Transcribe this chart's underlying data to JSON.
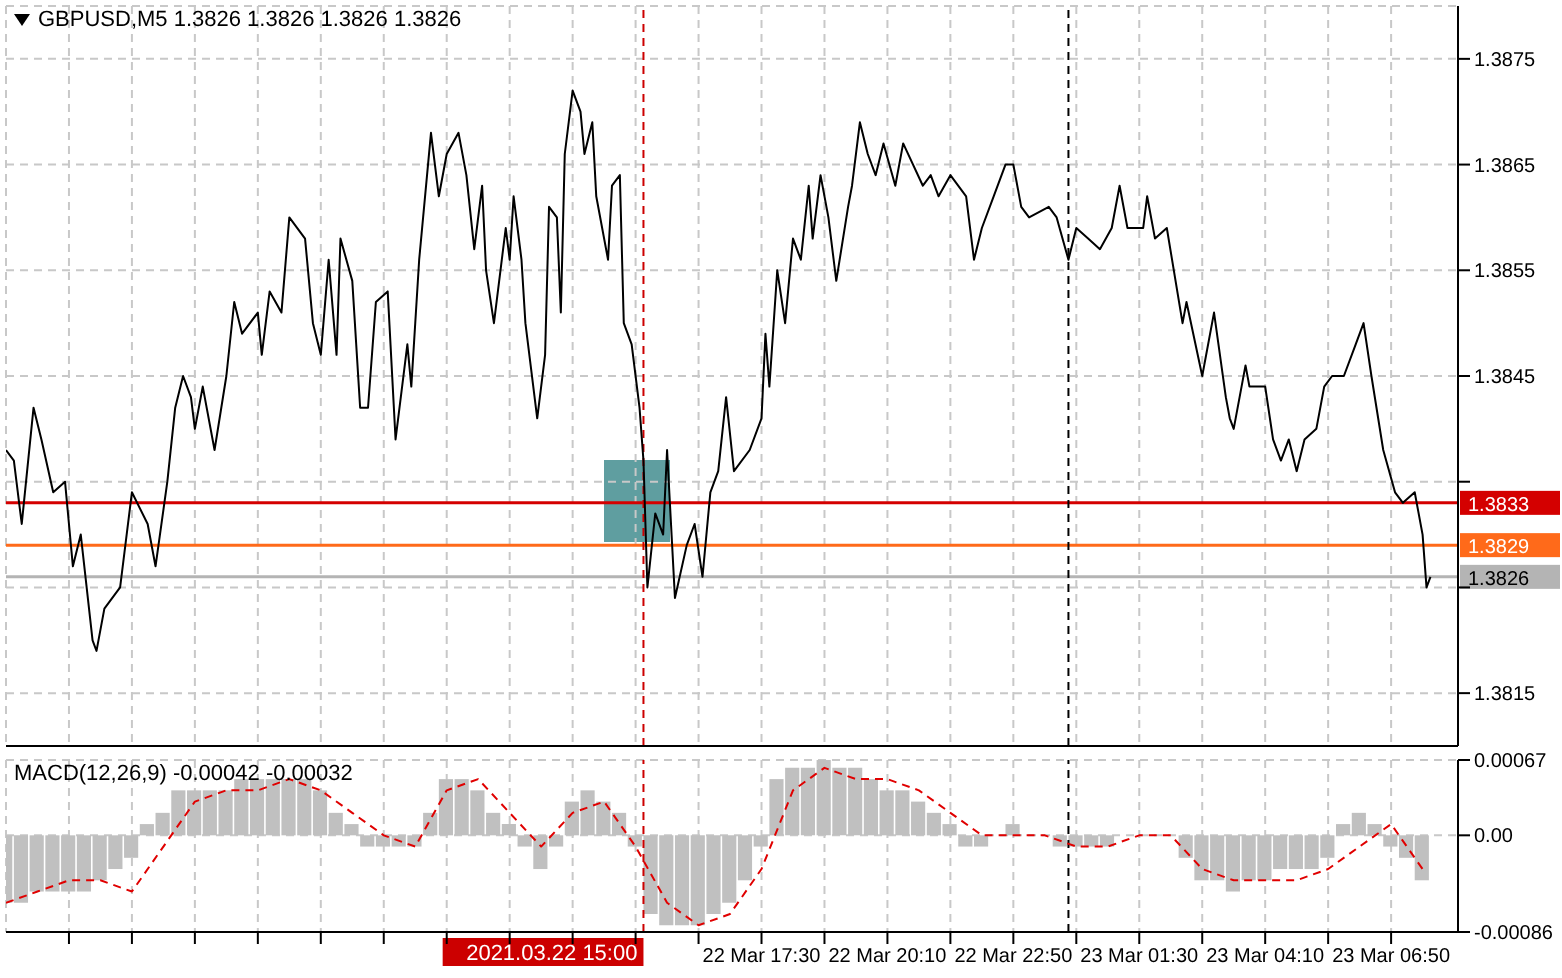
{
  "chart_data": [
    {
      "type": "line",
      "title": "GBPUSD,M5 1.3826 1.3826 1.3826 1.3826",
      "x": [
        "2021-03-22T01:30",
        "2021-03-22T01:40",
        "2021-03-22T01:50",
        "2021-03-22T02:05",
        "2021-03-22T02:15",
        "2021-03-22T02:30",
        "2021-03-22T02:45",
        "2021-03-22T02:55",
        "2021-03-22T03:05",
        "2021-03-22T03:20",
        "2021-03-22T03:25",
        "2021-03-22T03:35",
        "2021-03-22T03:55",
        "2021-03-22T04:10",
        "2021-03-22T04:30",
        "2021-03-22T04:40",
        "2021-03-22T04:55",
        "2021-03-22T05:05",
        "2021-03-22T05:15",
        "2021-03-22T05:25",
        "2021-03-22T05:30",
        "2021-03-22T05:40",
        "2021-03-22T05:55",
        "2021-03-22T06:10",
        "2021-03-22T06:20",
        "2021-03-22T06:30",
        "2021-03-22T06:50",
        "2021-03-22T06:55",
        "2021-03-22T07:05",
        "2021-03-22T07:20",
        "2021-03-22T07:30",
        "2021-03-22T07:50",
        "2021-03-22T08:00",
        "2021-03-22T08:10",
        "2021-03-22T08:20",
        "2021-03-22T08:30",
        "2021-03-22T08:35",
        "2021-03-22T08:50",
        "2021-03-22T09:00",
        "2021-03-22T09:10",
        "2021-03-22T09:20",
        "2021-03-22T09:35",
        "2021-03-22T09:45",
        "2021-03-22T10:00",
        "2021-03-22T10:05",
        "2021-03-22T10:15",
        "2021-03-22T10:30",
        "2021-03-22T10:40",
        "2021-03-22T10:50",
        "2021-03-22T11:05",
        "2021-03-22T11:15",
        "2021-03-22T11:25",
        "2021-03-22T11:35",
        "2021-03-22T11:40",
        "2021-03-22T11:50",
        "2021-03-22T12:05",
        "2021-03-22T12:10",
        "2021-03-22T12:15",
        "2021-03-22T12:25",
        "2021-03-22T12:30",
        "2021-03-22T12:45",
        "2021-03-22T12:55",
        "2021-03-22T13:00",
        "2021-03-22T13:10",
        "2021-03-22T13:15",
        "2021-03-22T13:20",
        "2021-03-22T13:30",
        "2021-03-22T13:40",
        "2021-03-22T13:45",
        "2021-03-22T13:55",
        "2021-03-22T14:00",
        "2021-03-22T14:15",
        "2021-03-22T14:20",
        "2021-03-22T14:30",
        "2021-03-22T14:35",
        "2021-03-22T14:45",
        "2021-03-22T14:55",
        "2021-03-22T15:00",
        "2021-03-22T15:05",
        "2021-03-22T15:15",
        "2021-03-22T15:25",
        "2021-03-22T15:30",
        "2021-03-22T15:40",
        "2021-03-22T15:55",
        "2021-03-22T16:05",
        "2021-03-22T16:15",
        "2021-03-22T16:25",
        "2021-03-22T16:35",
        "2021-03-22T16:45",
        "2021-03-22T16:55",
        "2021-03-22T17:15",
        "2021-03-22T17:30",
        "2021-03-22T17:35",
        "2021-03-22T17:40",
        "2021-03-22T17:50",
        "2021-03-22T18:00",
        "2021-03-22T18:10",
        "2021-03-22T18:20",
        "2021-03-22T18:30",
        "2021-03-22T18:35",
        "2021-03-22T18:45",
        "2021-03-22T18:55",
        "2021-03-22T19:05",
        "2021-03-22T19:20",
        "2021-03-22T19:25",
        "2021-03-22T19:35",
        "2021-03-22T19:45",
        "2021-03-22T19:55",
        "2021-03-22T20:05",
        "2021-03-22T20:20",
        "2021-03-22T20:30",
        "2021-03-22T20:55",
        "2021-03-22T21:05",
        "2021-03-22T21:15",
        "2021-03-22T21:30",
        "2021-03-22T21:50",
        "2021-03-22T22:00",
        "2021-03-22T22:10",
        "2021-03-22T22:25",
        "2021-03-22T22:40",
        "2021-03-22T22:50",
        "2021-03-22T23:00",
        "2021-03-22T23:10",
        "2021-03-22T23:35",
        "2021-03-22T23:45",
        "2021-03-23T00:00",
        "2021-03-23T00:10",
        "2021-03-23T00:25",
        "2021-03-23T00:40",
        "2021-03-23T00:55",
        "2021-03-23T01:05",
        "2021-03-23T01:15",
        "2021-03-23T01:35",
        "2021-03-23T01:40",
        "2021-03-23T01:50",
        "2021-03-23T02:05",
        "2021-03-23T02:25",
        "2021-03-23T02:30",
        "2021-03-23T02:50",
        "2021-03-23T03:05",
        "2021-03-23T03:20",
        "2021-03-23T03:25",
        "2021-03-23T03:30",
        "2021-03-23T03:45",
        "2021-03-23T03:50",
        "2021-03-23T04:10",
        "2021-03-23T04:20",
        "2021-03-23T04:30",
        "2021-03-23T04:40",
        "2021-03-23T04:50",
        "2021-03-23T05:00",
        "2021-03-23T05:15",
        "2021-03-23T05:25",
        "2021-03-23T05:35",
        "2021-03-23T05:50",
        "2021-03-23T06:05",
        "2021-03-23T06:15",
        "2021-03-23T06:25",
        "2021-03-23T06:40",
        "2021-03-23T06:55",
        "2021-03-23T07:05",
        "2021-03-23T07:20",
        "2021-03-23T07:30",
        "2021-03-23T07:35",
        "2021-03-23T07:40"
      ],
      "series": [
        {
          "color": "#000000",
          "values": [
            1.3838,
            1.3837,
            1.3831,
            1.3842,
            1.3839,
            1.3834,
            1.3835,
            1.3827,
            1.383,
            1.382,
            1.3819,
            1.3823,
            1.3825,
            1.3834,
            1.3831,
            1.3827,
            1.3835,
            1.3842,
            1.3845,
            1.3843,
            1.384,
            1.3844,
            1.3838,
            1.3845,
            1.3852,
            1.3849,
            1.3851,
            1.3847,
            1.3853,
            1.3851,
            1.386,
            1.3858,
            1.385,
            1.3847,
            1.3856,
            1.3847,
            1.3858,
            1.3854,
            1.3842,
            1.3842,
            1.3852,
            1.3853,
            1.3839,
            1.3848,
            1.3844,
            1.3856,
            1.3868,
            1.3862,
            1.3866,
            1.3868,
            1.3864,
            1.3857,
            1.3863,
            1.3855,
            1.385,
            1.3859,
            1.3856,
            1.3862,
            1.3856,
            1.385,
            1.3841,
            1.3847,
            1.3861,
            1.386,
            1.3851,
            1.3866,
            1.3872,
            1.387,
            1.3866,
            1.3869,
            1.3862,
            1.3856,
            1.3863,
            1.3864,
            1.385,
            1.3848,
            1.3842,
            1.3837,
            1.3825,
            1.3832,
            1.383,
            1.3838,
            1.3824,
            1.3829,
            1.3831,
            1.3826,
            1.3834,
            1.3836,
            1.3843,
            1.3836,
            1.3838,
            1.3841,
            1.3849,
            1.3844,
            1.3855,
            1.385,
            1.3858,
            1.3856,
            1.3863,
            1.3858,
            1.3864,
            1.386,
            1.3854,
            1.3861,
            1.3863,
            1.3869,
            1.3866,
            1.3864,
            1.3867,
            1.3863,
            1.3867,
            1.3863,
            1.3864,
            1.3862,
            1.3864,
            1.3862,
            1.3856,
            1.3859,
            1.3862,
            1.3865,
            1.3865,
            1.3861,
            1.386,
            1.3861,
            1.386,
            1.3856,
            1.3859,
            1.3858,
            1.3857,
            1.3859,
            1.3863,
            1.3859,
            1.3859,
            1.3862,
            1.3858,
            1.3859,
            1.385,
            1.3852,
            1.3845,
            1.3851,
            1.3843,
            1.3841,
            1.384,
            1.3846,
            1.3844,
            1.3844,
            1.3839,
            1.3837,
            1.3839,
            1.3836,
            1.3839,
            1.384,
            1.3844,
            1.3845,
            1.3845,
            1.3848,
            1.385,
            1.3845,
            1.3838,
            1.3834,
            1.3833,
            1.3834,
            1.383,
            1.3825,
            1.3826
          ]
        }
      ],
      "xlim": [
        "2021-03-22T01:30",
        "2021-03-23T08:15"
      ],
      "xticks": [
        {
          "value": "2021-03-22T02:50",
          "label": null
        },
        {
          "value": "2021-03-22T04:10",
          "label": null
        },
        {
          "value": "2021-03-22T05:30",
          "label": null
        },
        {
          "value": "2021-03-22T06:50",
          "label": null
        },
        {
          "value": "2021-03-22T08:10",
          "label": null
        },
        {
          "value": "2021-03-22T09:30",
          "label": null
        },
        {
          "value": "2021-03-22T10:50",
          "label": null
        },
        {
          "value": "2021-03-22T12:10",
          "label": null
        },
        {
          "value": "2021-03-22T13:30",
          "label": null
        },
        {
          "value": "2021-03-22T14:50",
          "label": null
        },
        {
          "value": "2021-03-22T16:10",
          "label": null
        },
        {
          "value": "2021-03-22T17:30",
          "label": null
        },
        {
          "value": "2021-03-22T18:50",
          "label": null
        },
        {
          "value": "2021-03-22T20:10",
          "label": null
        },
        {
          "value": "2021-03-22T21:30",
          "label": null
        },
        {
          "value": "2021-03-22T22:50",
          "label": null
        },
        {
          "value": "2021-03-23T00:10",
          "label": null
        },
        {
          "value": "2021-03-23T01:30",
          "label": null
        },
        {
          "value": "2021-03-23T02:50",
          "label": null
        },
        {
          "value": "2021-03-23T04:10",
          "label": null
        },
        {
          "value": "2021-03-23T05:30",
          "label": null
        },
        {
          "value": "2021-03-23T06:50",
          "label": null
        }
      ],
      "ylim": [
        1.381,
        1.388
      ],
      "yticks": [
        1.3815,
        {
          "value": 1.3825,
          "label": null
        },
        {
          "value": 1.3835,
          "label": null
        },
        1.3845,
        1.3855,
        1.3865,
        1.3875
      ],
      "tick_labels": "y",
      "grid": true,
      "ref_lines": [
        {
          "axis": "y",
          "value": 1.3833,
          "label": "1.3833",
          "color": "#d40000"
        },
        {
          "axis": "y",
          "value": 1.3829,
          "label": "1.3829",
          "color": "#ff6a1a"
        },
        {
          "axis": "y",
          "value": 1.3826,
          "label": "1.3826",
          "color": "#b4b4b4"
        },
        {
          "axis": "x",
          "value": "2021-03-22T15:00",
          "color": "#cc0000",
          "line_style": "dashed"
        },
        {
          "axis": "x",
          "value": "2021-03-23T00:00",
          "color": "#000000",
          "line_style": "dashed"
        }
      ]
    },
    {
      "type": "bar",
      "title": "MACD(12,26,9) -0.00042 -0.00032",
      "series": [
        {
          "type": "bar",
          "color": "#c0c0c0",
          "x": [
            "2021-03-22T01:30",
            "2021-03-22T01:50",
            "2021-03-22T02:10",
            "2021-03-22T02:30",
            "2021-03-22T02:50",
            "2021-03-22T03:10",
            "2021-03-22T03:30",
            "2021-03-22T03:50",
            "2021-03-22T04:10",
            "2021-03-22T04:30",
            "2021-03-22T04:50",
            "2021-03-22T05:10",
            "2021-03-22T05:30",
            "2021-03-22T05:50",
            "2021-03-22T06:10",
            "2021-03-22T06:30",
            "2021-03-22T06:50",
            "2021-03-22T07:10",
            "2021-03-22T07:30",
            "2021-03-22T07:50",
            "2021-03-22T08:10",
            "2021-03-22T08:30",
            "2021-03-22T08:50",
            "2021-03-22T09:10",
            "2021-03-22T09:30",
            "2021-03-22T09:50",
            "2021-03-22T10:10",
            "2021-03-22T10:30",
            "2021-03-22T10:50",
            "2021-03-22T11:10",
            "2021-03-22T11:30",
            "2021-03-22T11:50",
            "2021-03-22T12:10",
            "2021-03-22T12:30",
            "2021-03-22T12:50",
            "2021-03-22T13:10",
            "2021-03-22T13:30",
            "2021-03-22T13:50",
            "2021-03-22T14:10",
            "2021-03-22T14:30",
            "2021-03-22T14:50",
            "2021-03-22T15:10",
            "2021-03-22T15:30",
            "2021-03-22T15:50",
            "2021-03-22T16:10",
            "2021-03-22T16:30",
            "2021-03-22T16:50",
            "2021-03-22T17:10",
            "2021-03-22T17:30",
            "2021-03-22T17:50",
            "2021-03-22T18:10",
            "2021-03-22T18:30",
            "2021-03-22T18:50",
            "2021-03-22T19:10",
            "2021-03-22T19:30",
            "2021-03-22T19:50",
            "2021-03-22T20:10",
            "2021-03-22T20:30",
            "2021-03-22T20:50",
            "2021-03-22T21:10",
            "2021-03-22T21:30",
            "2021-03-22T21:50",
            "2021-03-22T22:10",
            "2021-03-22T22:30",
            "2021-03-22T22:50",
            "2021-03-22T23:10",
            "2021-03-22T23:30",
            "2021-03-22T23:50",
            "2021-03-23T00:10",
            "2021-03-23T00:30",
            "2021-03-23T00:50",
            "2021-03-23T01:10",
            "2021-03-23T01:30",
            "2021-03-23T01:50",
            "2021-03-23T02:10",
            "2021-03-23T02:30",
            "2021-03-23T02:50",
            "2021-03-23T03:10",
            "2021-03-23T03:30",
            "2021-03-23T03:50",
            "2021-03-23T04:10",
            "2021-03-23T04:30",
            "2021-03-23T04:50",
            "2021-03-23T05:10",
            "2021-03-23T05:30",
            "2021-03-23T05:50",
            "2021-03-23T06:10",
            "2021-03-23T06:30",
            "2021-03-23T06:50",
            "2021-03-23T07:10",
            "2021-03-23T07:30"
          ],
          "values": [
            -0.0006,
            -0.0006,
            -0.0005,
            -0.0005,
            -0.0005,
            -0.0005,
            -0.0004,
            -0.0003,
            -0.0002,
            0.0001,
            0.0002,
            0.0004,
            0.0004,
            0.0004,
            0.0004,
            0.0005,
            0.0005,
            0.0005,
            0.0005,
            0.0005,
            0.0004,
            0.0002,
            0.0001,
            -0.0001,
            -0.0001,
            -0.0001,
            -0.0001,
            0.0002,
            0.0005,
            0.0005,
            0.0004,
            0.0002,
            0.0001,
            -0.0001,
            -0.0003,
            -0.0001,
            0.0003,
            0.0004,
            0.0003,
            0.0002,
            -0.0001,
            -0.0007,
            -0.0008,
            -0.0008,
            -0.0008,
            -0.0007,
            -0.0006,
            -0.0004,
            -0.0001,
            0.0005,
            0.0006,
            0.0006,
            0.00067,
            0.0006,
            0.0006,
            0.0005,
            0.0004,
            0.0004,
            0.0003,
            0.0002,
            0.0001,
            -0.0001,
            -0.0001,
            0,
            0.0001,
            0,
            0,
            -0.0001,
            -0.0001,
            -0.0001,
            -0.0001,
            0,
            0,
            0,
            0,
            -0.0002,
            -0.0004,
            -0.0004,
            -0.0005,
            -0.0004,
            -0.0004,
            -0.0003,
            -0.0003,
            -0.0003,
            -0.0002,
            0.0001,
            0.0002,
            0.0001,
            -0.0001,
            -0.0002,
            -0.0004
          ]
        },
        {
          "type": "line",
          "color": "#e00000",
          "line_style": "dashed",
          "x": [
            "2021-03-22T01:30",
            "2021-03-22T02:10",
            "2021-03-22T02:50",
            "2021-03-22T03:30",
            "2021-03-22T04:10",
            "2021-03-22T04:50",
            "2021-03-22T05:30",
            "2021-03-22T06:10",
            "2021-03-22T06:50",
            "2021-03-22T07:30",
            "2021-03-22T08:10",
            "2021-03-22T08:50",
            "2021-03-22T09:30",
            "2021-03-22T10:10",
            "2021-03-22T10:50",
            "2021-03-22T11:30",
            "2021-03-22T12:10",
            "2021-03-22T12:50",
            "2021-03-22T13:30",
            "2021-03-22T14:10",
            "2021-03-22T14:50",
            "2021-03-22T15:30",
            "2021-03-22T16:10",
            "2021-03-22T16:50",
            "2021-03-22T17:30",
            "2021-03-22T18:10",
            "2021-03-22T18:50",
            "2021-03-22T19:30",
            "2021-03-22T20:10",
            "2021-03-22T20:50",
            "2021-03-22T21:30",
            "2021-03-22T22:10",
            "2021-03-22T22:50",
            "2021-03-22T23:30",
            "2021-03-23T00:10",
            "2021-03-23T00:50",
            "2021-03-23T01:30",
            "2021-03-23T02:10",
            "2021-03-23T02:50",
            "2021-03-23T03:30",
            "2021-03-23T04:10",
            "2021-03-23T04:50",
            "2021-03-23T05:30",
            "2021-03-23T06:10",
            "2021-03-23T06:50",
            "2021-03-23T07:30"
          ],
          "values": [
            -0.0006,
            -0.0005,
            -0.0004,
            -0.0004,
            -0.0005,
            -0.0001,
            0.0003,
            0.0004,
            0.0004,
            0.0005,
            0.0004,
            0.0002,
            0,
            -0.0001,
            0.0004,
            0.0005,
            0.0002,
            -0.0001,
            0.0002,
            0.0003,
            -0.0001,
            -0.0006,
            -0.0008,
            -0.0007,
            -0.0003,
            0.0004,
            0.0006,
            0.0005,
            0.0005,
            0.0004,
            0.0002,
            0,
            0,
            0,
            -0.0001,
            -0.0001,
            0,
            0,
            -0.0003,
            -0.0004,
            -0.0004,
            -0.0004,
            -0.0003,
            -0.0001,
            0.0001,
            -0.0003
          ]
        }
      ],
      "xlim": [
        "2021-03-22T01:30",
        "2021-03-23T08:15"
      ],
      "xticks": [
        {
          "value": "2021-03-22T02:50",
          "label": null
        },
        {
          "value": "2021-03-22T04:10",
          "label": null
        },
        {
          "value": "2021-03-22T05:30",
          "label": null
        },
        {
          "value": "2021-03-22T06:50",
          "label": null
        },
        {
          "value": "2021-03-22T08:10",
          "label": null
        },
        {
          "value": "2021-03-22T09:30",
          "label": null
        },
        {
          "value": "2021-03-22T10:50",
          "label": null
        },
        {
          "value": "2021-03-22T12:10",
          "label": null
        },
        {
          "value": "2021-03-22T13:30",
          "label": null
        },
        {
          "value": "2021-03-22T14:50",
          "label": null
        },
        {
          "value": "2021-03-22T16:10",
          "label": null
        },
        {
          "value": "2021-03-22T17:30",
          "label": "22 Mar 17:30"
        },
        {
          "value": "2021-03-22T18:50",
          "label": null
        },
        {
          "value": "2021-03-22T20:10",
          "label": "22 Mar 20:10"
        },
        {
          "value": "2021-03-22T21:30",
          "label": null
        },
        {
          "value": "2021-03-22T22:50",
          "label": "22 Mar 22:50"
        },
        {
          "value": "2021-03-23T00:10",
          "label": null
        },
        {
          "value": "2021-03-23T01:30",
          "label": "23 Mar 01:30"
        },
        {
          "value": "2021-03-23T02:50",
          "label": null
        },
        {
          "value": "2021-03-23T04:10",
          "label": "23 Mar 04:10"
        },
        {
          "value": "2021-03-23T05:30",
          "label": null
        },
        {
          "value": "2021-03-23T06:50",
          "label": "23 Mar 06:50"
        }
      ],
      "ylim": [
        -0.00086,
        0.00067
      ],
      "yticks": [
        -0.00086,
        {
          "value": 0,
          "label": "0.00"
        },
        0.00067
      ],
      "grid": true,
      "ref_lines": [
        {
          "axis": "x",
          "value": "2021-03-22T15:00",
          "label": "2021.03.22 15:00",
          "color": "#cc0000",
          "line_style": "dashed"
        },
        {
          "axis": "x",
          "value": "2021-03-23T00:00",
          "color": "#000000",
          "line_style": "dashed"
        }
      ]
    }
  ]
}
